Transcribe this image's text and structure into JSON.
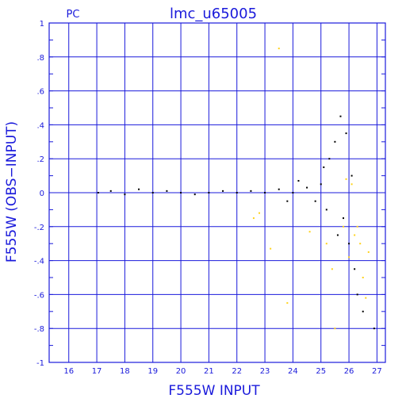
{
  "chart_data": {
    "type": "scatter",
    "title": "lmc_u65005",
    "corner_label": "PC",
    "xlabel": "F555W INPUT",
    "ylabel": "F555W (OBS−INPUT)",
    "xlim": [
      15.3,
      27.3
    ],
    "ylim": [
      -1,
      1
    ],
    "x_ticks": [
      16,
      17,
      18,
      19,
      20,
      21,
      22,
      23,
      24,
      25,
      26,
      27
    ],
    "y_ticks": [
      -1,
      -0.8,
      -0.6,
      -0.4,
      -0.2,
      0,
      0.2,
      0.4,
      0.6,
      0.8,
      1
    ],
    "grid": true,
    "colors": {
      "axis": "#1a1adb",
      "grid": "#1a1adb",
      "points": "#000000",
      "highlight": "#ffd21a"
    },
    "series": [
      {
        "points": [
          [
            17.05,
            0.0
          ],
          [
            17.5,
            0.01
          ],
          [
            18.0,
            -0.01
          ],
          [
            18.5,
            0.02
          ],
          [
            19.0,
            0.0
          ],
          [
            19.5,
            0.01
          ],
          [
            20.0,
            0.0
          ],
          [
            20.5,
            -0.01
          ],
          [
            21.0,
            0.0
          ],
          [
            21.5,
            0.01
          ],
          [
            22.0,
            0.0
          ],
          [
            22.5,
            0.01
          ],
          [
            23.0,
            0.0
          ],
          [
            23.5,
            0.02
          ],
          [
            24.0,
            0.0
          ],
          [
            24.5,
            0.03
          ],
          [
            25.0,
            0.05
          ],
          [
            25.3,
            0.2
          ],
          [
            25.5,
            0.3
          ],
          [
            25.7,
            0.45
          ],
          [
            25.9,
            0.35
          ],
          [
            25.2,
            -0.1
          ],
          [
            25.6,
            -0.25
          ],
          [
            26.0,
            -0.3
          ],
          [
            26.2,
            -0.45
          ],
          [
            26.3,
            -0.6
          ],
          [
            26.5,
            -0.7
          ],
          [
            26.9,
            -0.8
          ],
          [
            24.8,
            -0.05
          ],
          [
            23.8,
            -0.05
          ],
          [
            25.1,
            0.15
          ],
          [
            26.1,
            0.1
          ],
          [
            25.8,
            -0.15
          ],
          [
            24.2,
            0.07
          ]
        ]
      },
      {
        "points": [
          [
            23.5,
            0.85
          ],
          [
            22.6,
            -0.15
          ],
          [
            22.8,
            -0.12
          ],
          [
            23.2,
            -0.33
          ],
          [
            23.8,
            -0.65
          ],
          [
            24.6,
            -0.23
          ],
          [
            25.2,
            -0.3
          ],
          [
            25.4,
            -0.45
          ],
          [
            25.5,
            -0.8
          ],
          [
            25.8,
            -0.2
          ],
          [
            26.0,
            -0.38
          ],
          [
            26.2,
            -0.25
          ],
          [
            26.3,
            -0.2
          ],
          [
            26.5,
            -0.5
          ],
          [
            26.6,
            -0.62
          ],
          [
            26.7,
            -0.35
          ],
          [
            26.4,
            -0.3
          ],
          [
            25.9,
            0.08
          ],
          [
            26.1,
            0.05
          ]
        ]
      }
    ]
  }
}
